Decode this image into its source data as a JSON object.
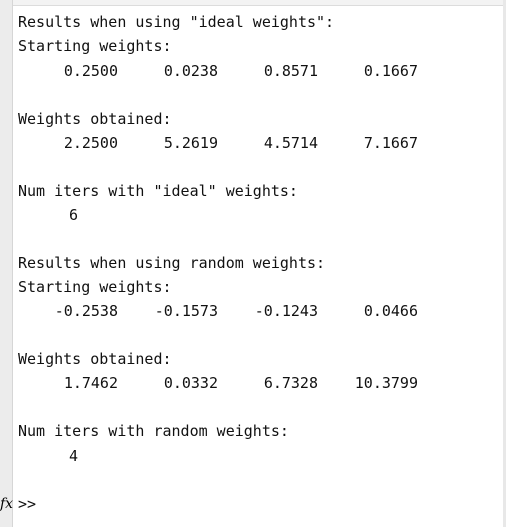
{
  "console": {
    "lines": {
      "ideal_header": "Results when using \"ideal weights\":",
      "ideal_start_label": "Starting weights:",
      "ideal_weights_label": "Weights obtained:",
      "ideal_iters_label": "Num iters with \"ideal\" weights:",
      "ideal_iters_value": "6",
      "random_header": "Results when using random weights:",
      "random_start_label": "Starting weights:",
      "random_weights_label": "Weights obtained:",
      "random_iters_label": "Num iters with random weights:",
      "random_iters_value": "4"
    },
    "ideal_starting_weights": [
      "0.2500",
      "0.0238",
      "0.8571",
      "0.1667"
    ],
    "ideal_weights_obtained": [
      "2.2500",
      "5.2619",
      "4.5714",
      "7.1667"
    ],
    "random_starting_weights": [
      "-0.2538",
      "-0.1573",
      "-0.1243",
      "0.0466"
    ],
    "random_weights_obtained": [
      "1.7462",
      "0.0332",
      "6.7328",
      "10.3799"
    ]
  },
  "prompt": {
    "fx_icon": "fx",
    "symbol": ">>"
  }
}
